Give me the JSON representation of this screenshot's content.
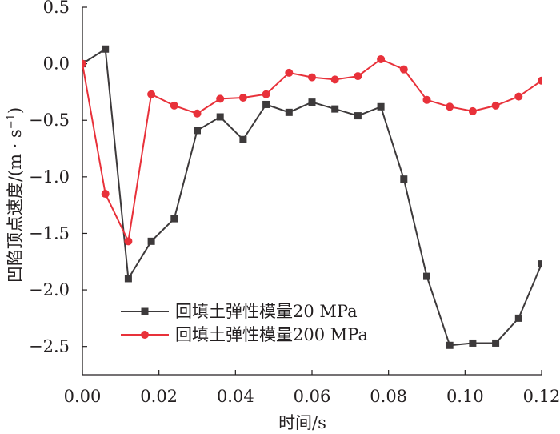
{
  "chart_data": {
    "type": "line",
    "title": "",
    "xlabel": "时间/s",
    "ylabel_main": "凹陷顶点速度/(m · s",
    "ylabel_exp": "−1",
    "ylabel_close": ")",
    "xlim": [
      0.0,
      0.12
    ],
    "ylim": [
      -2.75,
      0.5
    ],
    "x_ticks": [
      0.0,
      0.02,
      0.04,
      0.06,
      0.08,
      0.1,
      0.12
    ],
    "x_tick_labels": [
      "0.00",
      "0.02",
      "0.04",
      "0.06",
      "0.08",
      "0.10",
      "0.12"
    ],
    "y_ticks": [
      0.5,
      0.0,
      -0.5,
      -1.0,
      -1.5,
      -2.0,
      -2.5
    ],
    "y_tick_labels": [
      "0.5",
      "0.0",
      "−0.5",
      "−1.0",
      "−1.5",
      "−2.0",
      "−2.5"
    ],
    "grid": false,
    "legend_position": "bottom-left",
    "series": [
      {
        "name": "回填土弹性模量20 MPa",
        "color": "#3d3a3b",
        "marker": "square",
        "x": [
          0.0,
          0.006,
          0.012,
          0.018,
          0.024,
          0.03,
          0.036,
          0.042,
          0.048,
          0.054,
          0.06,
          0.066,
          0.072,
          0.078,
          0.084,
          0.09,
          0.096,
          0.102,
          0.108,
          0.114,
          0.12
        ],
        "y": [
          0.0,
          0.13,
          -1.9,
          -1.57,
          -1.37,
          -0.59,
          -0.47,
          -0.67,
          -0.36,
          -0.43,
          -0.34,
          -0.4,
          -0.46,
          -0.38,
          -1.02,
          -1.88,
          -2.49,
          -2.47,
          -2.47,
          -2.25,
          -1.77
        ]
      },
      {
        "name": "回填土弹性模量200 MPa",
        "color": "#e8313a",
        "marker": "circle",
        "x": [
          0.0,
          0.006,
          0.012,
          0.018,
          0.024,
          0.03,
          0.036,
          0.042,
          0.048,
          0.054,
          0.06,
          0.066,
          0.072,
          0.078,
          0.084,
          0.09,
          0.096,
          0.102,
          0.108,
          0.114,
          0.12
        ],
        "y": [
          0.0,
          -1.15,
          -1.57,
          -0.27,
          -0.37,
          -0.44,
          -0.31,
          -0.3,
          -0.27,
          -0.08,
          -0.12,
          -0.14,
          -0.11,
          0.04,
          -0.05,
          -0.32,
          -0.38,
          -0.42,
          -0.37,
          -0.29,
          -0.15
        ]
      }
    ]
  }
}
